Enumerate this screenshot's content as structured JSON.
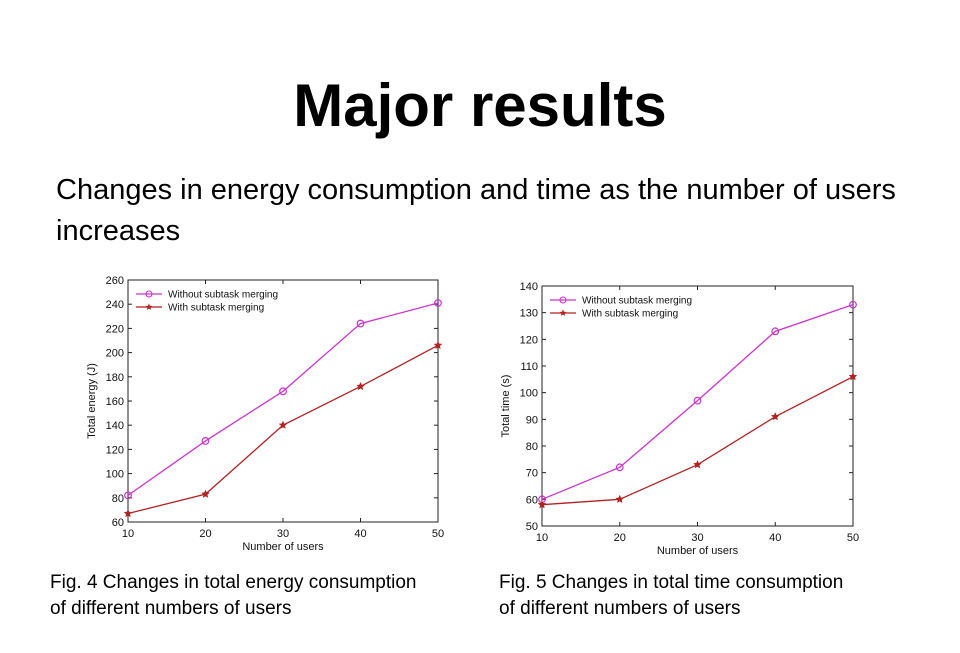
{
  "slide": {
    "title": "Major results",
    "subtitle": "Changes in energy consumption and time as the number of users increases"
  },
  "captions": {
    "energy": [
      "Fig. 4  Changes in total energy consumption",
      "of different numbers of users"
    ],
    "time": [
      "Fig. 5  Changes in total time consumption",
      "of different numbers of users"
    ]
  },
  "colors": {
    "without": "#cc33cc",
    "with": "#b22222"
  },
  "chart_data": [
    {
      "type": "line",
      "x": [
        10,
        20,
        30,
        40,
        50
      ],
      "xlabel": "Number of users",
      "ylabel": "Total energy (J)",
      "xlim": [
        10,
        50
      ],
      "ylim": [
        60,
        260
      ],
      "xticks": [
        10,
        20,
        30,
        40,
        50
      ],
      "yticks": [
        60,
        80,
        100,
        120,
        140,
        160,
        180,
        200,
        220,
        240,
        260
      ],
      "grid": false,
      "legend": "top-left",
      "series": [
        {
          "name": "Without subtask merging",
          "marker": "circle",
          "color": "#cc33cc",
          "values": [
            82,
            127,
            168,
            224,
            241
          ]
        },
        {
          "name": "With subtask merging",
          "marker": "star",
          "color": "#b22222",
          "values": [
            67,
            83,
            140,
            172,
            206
          ]
        }
      ]
    },
    {
      "type": "line",
      "x": [
        10,
        20,
        30,
        40,
        50
      ],
      "xlabel": "Number of users",
      "ylabel": "Total time (s)",
      "xlim": [
        10,
        50
      ],
      "ylim": [
        50,
        140
      ],
      "xticks": [
        10,
        20,
        30,
        40,
        50
      ],
      "yticks": [
        50,
        60,
        70,
        80,
        90,
        100,
        110,
        120,
        130,
        140
      ],
      "grid": false,
      "legend": "top-left",
      "series": [
        {
          "name": "Without subtask merging",
          "marker": "circle",
          "color": "#cc33cc",
          "values": [
            60,
            72,
            97,
            123,
            133
          ]
        },
        {
          "name": "With subtask merging",
          "marker": "star",
          "color": "#b22222",
          "values": [
            58,
            60,
            73,
            91,
            106
          ]
        }
      ]
    }
  ]
}
